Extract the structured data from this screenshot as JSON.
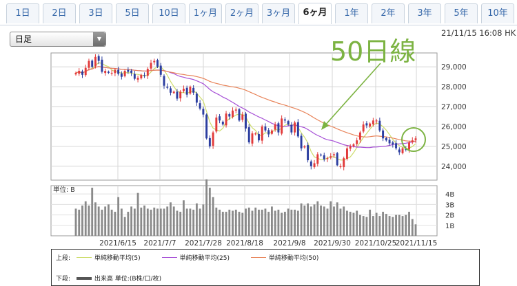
{
  "tabs": [
    {
      "label": "1日"
    },
    {
      "label": "2日"
    },
    {
      "label": "3日"
    },
    {
      "label": "5日"
    },
    {
      "label": "10日"
    },
    {
      "label": "1ヶ月"
    },
    {
      "label": "2ヶ月"
    },
    {
      "label": "3ヶ月"
    },
    {
      "label": "6ヶ月",
      "active": true
    },
    {
      "label": "1年"
    },
    {
      "label": "2年"
    },
    {
      "label": "3年"
    },
    {
      "label": "5年"
    },
    {
      "label": "10年"
    }
  ],
  "period_select": {
    "value": "日足"
  },
  "timestamp": "21/11/15 16:08 HK",
  "annotation": {
    "text": "50日線",
    "color": "#7cb342"
  },
  "legend": {
    "upper_label": "上段:",
    "lower_label": "下段:",
    "items": [
      {
        "label": "単純移動平均(5)",
        "color": "#cddc6a"
      },
      {
        "label": "単純移動平均(25)",
        "color": "#a64fd6"
      },
      {
        "label": "単純移動平均(50)",
        "color": "#e8845a"
      }
    ],
    "volume_label": "出来高 単位:(B株/口/枚)"
  },
  "chart_data": {
    "type": "candlestick",
    "up_color": "#e23b3b",
    "down_color": "#2c3ea0",
    "x_ticks": [
      "2021/6/15",
      "2021/7/7",
      "2021/7/28",
      "2021/8/18",
      "2021/9/8",
      "2021/9/30",
      "2021/10/25",
      "2021/11/15"
    ],
    "y_ticks": [
      "29,000",
      "28,000",
      "27,000",
      "26,000",
      "25,000",
      "24,000"
    ],
    "ylim": [
      23300,
      29700
    ],
    "close": [
      28700,
      28800,
      28600,
      28950,
      29300,
      29000,
      29500,
      29300,
      28750,
      28800,
      28700,
      28700,
      28850,
      28650,
      28500,
      28800,
      28750,
      28700,
      28400,
      28450,
      28600,
      28550,
      28900,
      29200,
      29300,
      29000,
      28600,
      28050,
      27950,
      27700,
      27750,
      27400,
      27750,
      27900,
      27600,
      28000,
      27700,
      27200,
      26900,
      26600,
      25400,
      25000,
      25700,
      26450,
      26300,
      26100,
      26650,
      26500,
      26800,
      26850,
      26300,
      26600,
      25900,
      25200,
      25650,
      25650,
      25300,
      26000,
      25800,
      25600,
      25800,
      26100,
      25700,
      26400,
      26300,
      26100,
      25700,
      26200,
      25500,
      24900,
      25000,
      24300,
      24000,
      24150,
      24600,
      24550,
      24350,
      24400,
      24500,
      24600,
      24050,
      24000,
      24400,
      24900,
      25000,
      25100,
      25300,
      25700,
      26100,
      26050,
      26150,
      26300,
      26300,
      25800,
      25400,
      25300,
      25150,
      25100,
      24900,
      24700,
      24900,
      24850,
      25200,
      25300,
      25400
    ],
    "volume_label": "単位: B",
    "volume_ticks": [
      "4B",
      "3B",
      "2B",
      "1B"
    ],
    "volume_max": 4.8,
    "volume": [
      2.6,
      2.5,
      2.9,
      3.3,
      2.9,
      4.6,
      3.2,
      2.8,
      2.5,
      2.8,
      3.0,
      2.5,
      2.3,
      3.7,
      2.6,
      1.8,
      2.3,
      2.8,
      2.6,
      4.1,
      2.7,
      2.9,
      2.6,
      2.5,
      2.7,
      2.6,
      2.6,
      2.6,
      2.8,
      3.2,
      2.8,
      2.4,
      2.3,
      3.4,
      2.6,
      2.6,
      2.5,
      3.1,
      2.6,
      3.0,
      5.4,
      4.6,
      3.7,
      2.7,
      2.5,
      2.3,
      2.3,
      2.5,
      2.4,
      2.5,
      2.3,
      2.2,
      2.6,
      2.7,
      2.4,
      2.7,
      2.5,
      2.5,
      2.6,
      2.3,
      2.8,
      2.4,
      2.5,
      2.2,
      2.3,
      2.6,
      2.5,
      2.5,
      2.4,
      3.1,
      2.9,
      3.1,
      2.8,
      3.0,
      3.3,
      2.9,
      2.8,
      2.6,
      3.3,
      2.8,
      3.2,
      2.6,
      2.8,
      2.4,
      2.3,
      2.2,
      2.4,
      2.0,
      1.9,
      1.8,
      2.5,
      1.9,
      2.2,
      1.9,
      2.3,
      2.1,
      1.9,
      1.8,
      2.0,
      2.0,
      1.9,
      2.0,
      2.3,
      1.6,
      1.1
    ]
  }
}
